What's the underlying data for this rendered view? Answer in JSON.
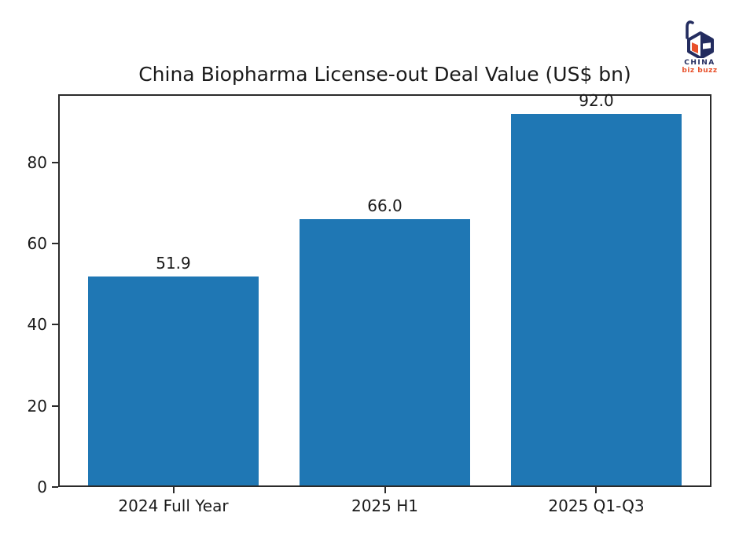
{
  "logo": {
    "line1": "CHINA",
    "line2": "biz buzz",
    "navy": "#232c5f",
    "orange": "#e8502a"
  },
  "chart_data": {
    "type": "bar",
    "title": "China Biopharma License-out Deal Value (US$ bn)",
    "categories": [
      "2024 Full Year",
      "2025 H1",
      "2025 Q1-Q3"
    ],
    "values": [
      51.9,
      66.0,
      92.0
    ],
    "value_labels": [
      "51.9",
      "66.0",
      "92.0"
    ],
    "xlabel": "",
    "ylabel": "",
    "ylim": [
      0,
      96.8
    ],
    "yticks": [
      0,
      20,
      40,
      60,
      80
    ],
    "bar_color": "#1f77b4",
    "axis_color": "#2b2b2b",
    "grid": false,
    "legend_position": "none"
  }
}
